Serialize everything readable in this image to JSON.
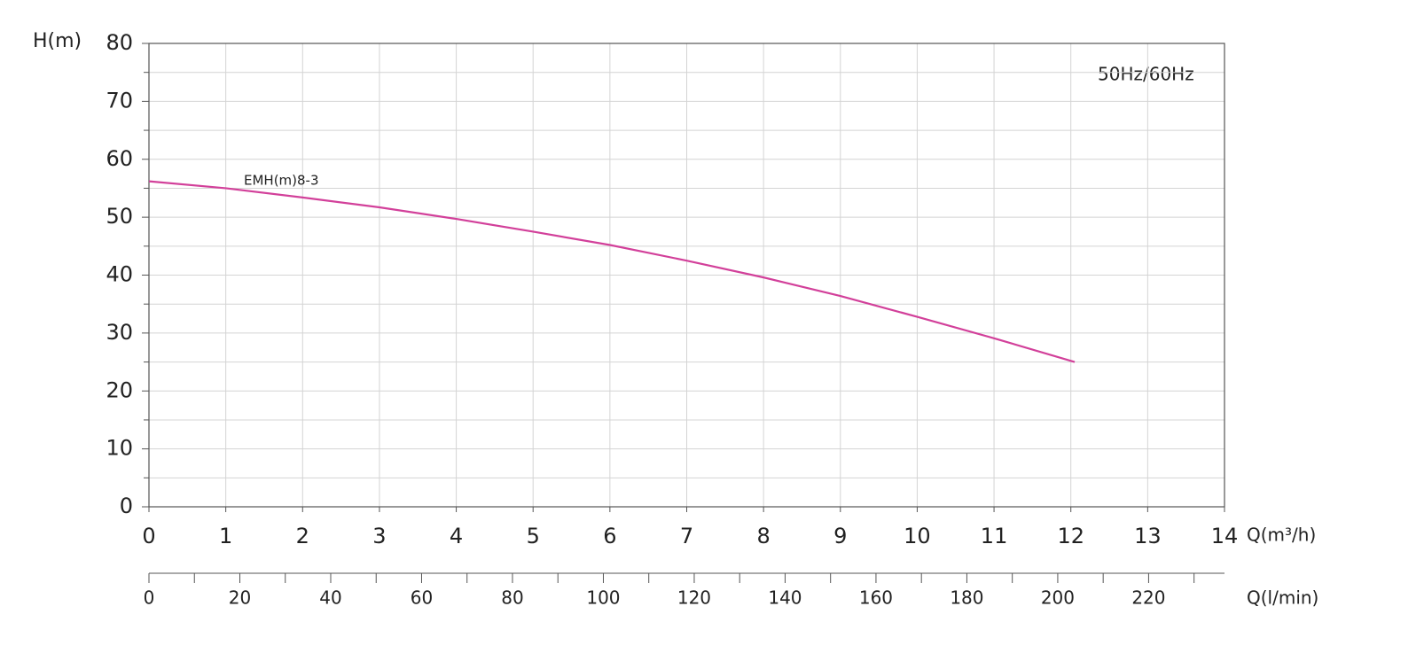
{
  "chart_data": {
    "type": "line",
    "ylabel": "H(m)",
    "xlabel": "Q(m³/h)",
    "x2label": "Q(l/min)",
    "annotation": "50Hz/60Hz",
    "xlim": [
      0,
      14
    ],
    "xticks": [
      0,
      1,
      2,
      3,
      4,
      5,
      6,
      7,
      8,
      9,
      10,
      11,
      12,
      13,
      14
    ],
    "ylim": [
      0,
      80
    ],
    "yticks": [
      0,
      10,
      20,
      30,
      40,
      50,
      60,
      70,
      80
    ],
    "yminorticks": [
      5,
      15,
      25,
      35,
      45,
      55,
      65,
      75
    ],
    "x2lim": [
      0,
      236.7
    ],
    "x2ticks": [
      0,
      20,
      40,
      60,
      80,
      100,
      120,
      140,
      160,
      180,
      200,
      220
    ],
    "x2minorticks": [
      10,
      30,
      50,
      70,
      90,
      110,
      130,
      150,
      170,
      190,
      210,
      230
    ],
    "grid": true,
    "series": [
      {
        "name": "EMH(m)8-3",
        "color": "#d2409a",
        "x": [
          0,
          1,
          2,
          3,
          4,
          5,
          6,
          7,
          8,
          9,
          10,
          11,
          12.05
        ],
        "values": [
          56.2,
          55,
          53.4,
          51.7,
          49.7,
          47.5,
          45.2,
          42.5,
          39.6,
          36.4,
          32.8,
          29.1,
          25
        ]
      }
    ]
  }
}
